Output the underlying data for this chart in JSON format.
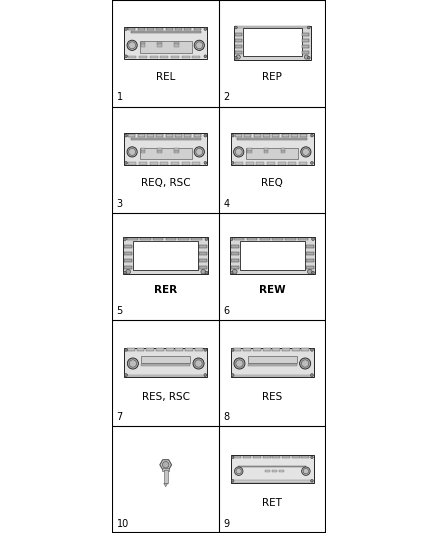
{
  "bg_color": "#ffffff",
  "grid_color": "#000000",
  "text_color": "#000000",
  "cells": [
    {
      "num": "1",
      "label": "REL",
      "type": "standard_radio",
      "row": 0,
      "col": 0
    },
    {
      "num": "2",
      "label": "REP",
      "type": "nav_radio",
      "row": 0,
      "col": 1
    },
    {
      "num": "3",
      "label": "REQ, RSC",
      "type": "standard_radio",
      "row": 1,
      "col": 0
    },
    {
      "num": "4",
      "label": "REQ",
      "type": "standard_radio",
      "row": 1,
      "col": 1
    },
    {
      "num": "5",
      "label": "RER",
      "type": "nav_radio_large",
      "row": 2,
      "col": 0
    },
    {
      "num": "6",
      "label": "REW",
      "type": "nav_radio_large",
      "row": 2,
      "col": 1
    },
    {
      "num": "7",
      "label": "RES, RSC",
      "type": "res_radio",
      "row": 3,
      "col": 0
    },
    {
      "num": "8",
      "label": "RES",
      "type": "res_radio",
      "row": 3,
      "col": 1
    },
    {
      "num": "9",
      "label": "RET",
      "type": "ret_radio",
      "row": 4,
      "col": 1
    },
    {
      "num": "10",
      "label": "",
      "type": "bolt",
      "row": 4,
      "col": 0
    }
  ],
  "figsize": [
    4.38,
    5.33
  ],
  "dpi": 100,
  "ncols": 2,
  "nrows": 5
}
